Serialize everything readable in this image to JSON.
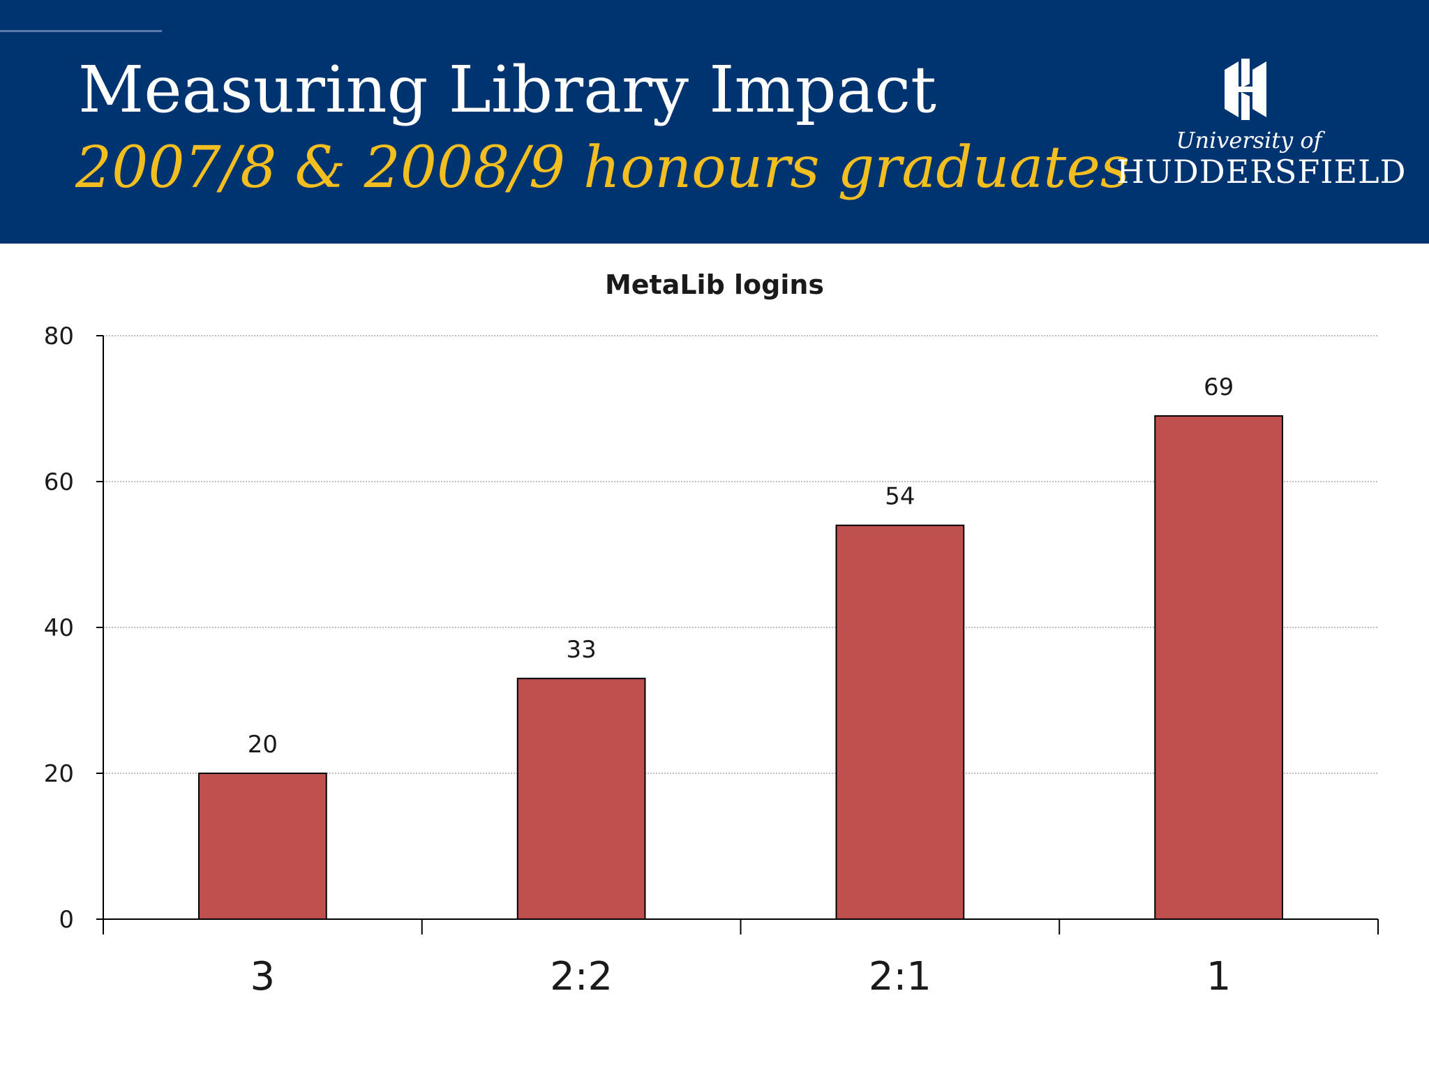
{
  "slide": {
    "title": "Measuring Library Impact",
    "subtitle": "2007/8 & 2008/9 honours graduates"
  },
  "logo": {
    "line1": "University of",
    "line2": "HUDDERSFIELD"
  },
  "colors": {
    "header_bg": "#003471",
    "subtitle": "#f3be1f",
    "bar_fill": "#c0504d"
  },
  "chart_data": {
    "type": "bar",
    "title": "MetaLib logins",
    "categories": [
      "3",
      "2:2",
      "2:1",
      "1"
    ],
    "values": [
      20,
      33,
      54,
      69
    ],
    "xlabel": "",
    "ylabel": "",
    "ylim": [
      0,
      80
    ],
    "yticks": [
      0,
      20,
      40,
      60,
      80
    ],
    "grid": true,
    "legend": "none"
  }
}
